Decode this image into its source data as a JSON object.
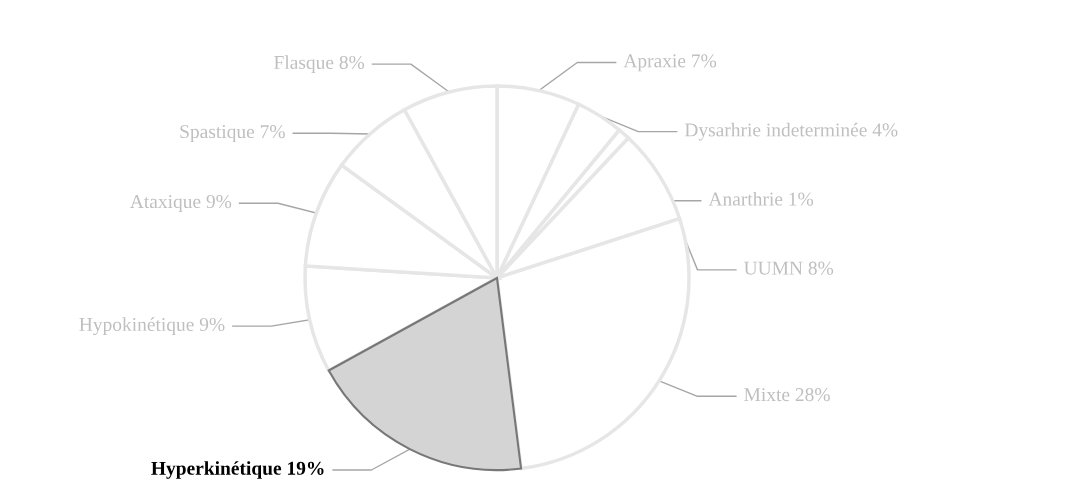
{
  "chart_data": {
    "type": "pie",
    "categories": [
      "Apraxie",
      "Dysarhrie indeterminée",
      "Anarthrie",
      "UUMN",
      "Mixte",
      "Hyperkinétique",
      "Hypokinétique",
      "Ataxique",
      "Spastique",
      "Flasque"
    ],
    "values": [
      7,
      4,
      1,
      8,
      28,
      19,
      9,
      9,
      7,
      8
    ],
    "colors": [
      "#ffffff",
      "#ffffff",
      "#ffffff",
      "#ffffff",
      "#ffffff",
      "#d4d4d4",
      "#ffffff",
      "#ffffff",
      "#ffffff",
      "#ffffff"
    ],
    "value_labels": [
      "7%",
      "4%",
      "1%",
      "8%",
      "28%",
      "19%",
      "9%",
      "9%",
      "7%",
      "8%"
    ],
    "legend": false
  }
}
